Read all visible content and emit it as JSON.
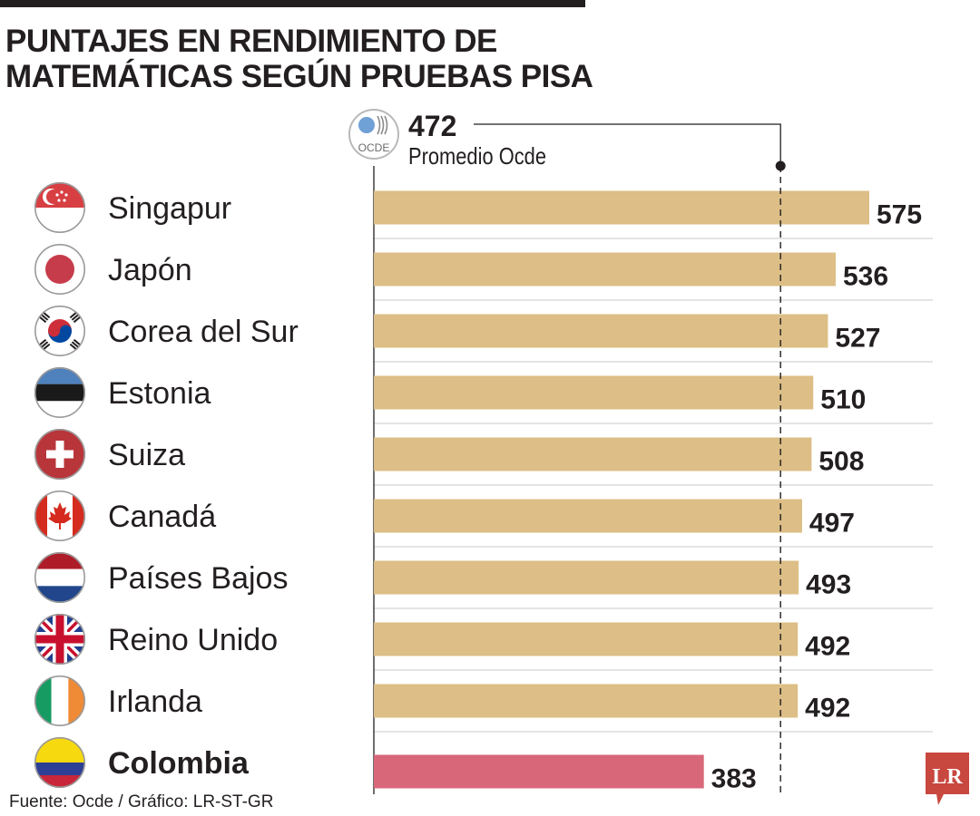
{
  "header": {
    "title_line1": "PUNTAJES EN RENDIMIENTO DE",
    "title_line2": "MATEMÁTICAS SEGÚN PRUEBAS PISA"
  },
  "reference": {
    "value": "472",
    "label": "Promedio Ocde",
    "logo_text": "OCDE",
    "logo_icon": "ocde-logo-icon"
  },
  "footer": {
    "source": "Fuente: Ocde / Gráfico: LR-ST-GR",
    "brand": "LR"
  },
  "colors": {
    "bar": "#dcbe86",
    "highlight_bar": "#d9677a",
    "reference_line": "#231f20",
    "brand": "#c8473f"
  },
  "chart_data": {
    "type": "bar",
    "orientation": "horizontal",
    "categories": [
      "Singapur",
      "Japón",
      "Corea del Sur",
      "Estonia",
      "Suiza",
      "Canadá",
      "Países Bajos",
      "Reino Unido",
      "Irlanda",
      "Colombia"
    ],
    "values": [
      575,
      536,
      527,
      510,
      508,
      497,
      493,
      492,
      492,
      383
    ],
    "flags": [
      "singapore-flag-icon",
      "japan-flag-icon",
      "south-korea-flag-icon",
      "estonia-flag-icon",
      "switzerland-flag-icon",
      "canada-flag-icon",
      "netherlands-flag-icon",
      "united-kingdom-flag-icon",
      "ireland-flag-icon",
      "colombia-flag-icon"
    ],
    "highlight": "Colombia",
    "reference_value": 472,
    "reference_label": "Promedio Ocde",
    "xlim": [
      0,
      575
    ],
    "grid": false
  }
}
